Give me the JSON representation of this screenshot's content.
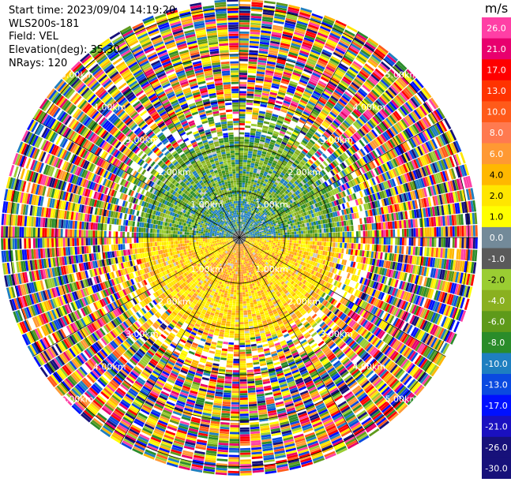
{
  "info": {
    "start_time": "Start time: 2023/09/04 14:19:20",
    "site": "WLS200s-181",
    "field": "Field: VEL",
    "elevation": "Elevation(deg): 35.30",
    "nrays": "NRays: 120"
  },
  "chart_data": {
    "type": "ppi-polar-heatmap",
    "field": "VEL",
    "units": "m/s",
    "n_rays": 120,
    "range_rings_km": [
      1.0,
      2.0,
      3.0,
      4.0,
      5.0
    ],
    "range_ring_labels": [
      "1.00km",
      "2.00km",
      "3.00km",
      "4.00km",
      "5.00km"
    ],
    "colorbar": {
      "title": "m/s",
      "ticks": [
        "26.0",
        "21.0",
        "17.0",
        "13.0",
        "10.0",
        "8.0",
        "6.0",
        "4.0",
        "2.0",
        "1.0",
        "0.0",
        "-1.0",
        "-2.0",
        "-4.0",
        "-6.0",
        "-8.0",
        "-10.0",
        "-13.0",
        "-17.0",
        "-21.0",
        "-26.0",
        "-30.0"
      ],
      "colors": [
        "#ff3fa5",
        "#e8006e",
        "#ff0000",
        "#ff3300",
        "#ff5a1a",
        "#ff7a50",
        "#ff9933",
        "#ffb800",
        "#ffe600",
        "#ffff00",
        "#738a99",
        "#5a5a5a",
        "#9acd32",
        "#8ab020",
        "#5e9a1a",
        "#2a8c2a",
        "#1e7fc0",
        "#0a4ae0",
        "#0010ff",
        "#1a10c0",
        "#17117a",
        "#17117a"
      ]
    }
  }
}
